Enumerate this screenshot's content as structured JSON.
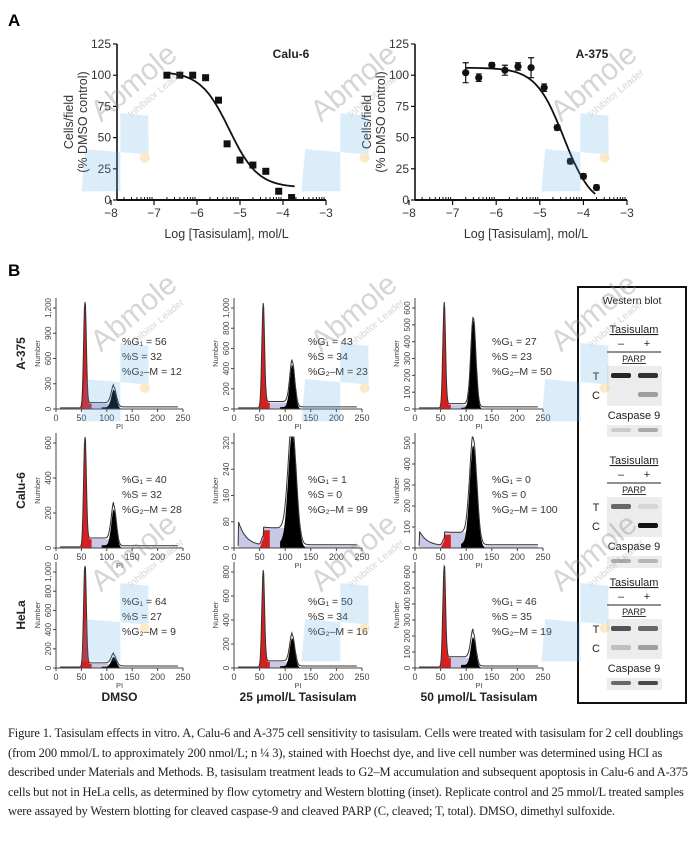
{
  "panel_a": {
    "label": "A",
    "chart_data": [
      {
        "type": "scatter",
        "title": "Calu-6",
        "xlabel": "Log [Tasisulam], mol/L",
        "ylabel_line1": "Cells/field",
        "ylabel_line2": "(% DMSO control)",
        "xlim": [
          -8,
          -3
        ],
        "ylim": [
          0,
          125
        ],
        "x_ticks": [
          "−8",
          "−7",
          "−6",
          "−5",
          "−4",
          "−3"
        ],
        "y_ticks": [
          "0",
          "25",
          "50",
          "75",
          "100",
          "125"
        ],
        "marker": "square",
        "fit_curve": "sigmoidal dose-response",
        "x": [
          -6.7,
          -6.4,
          -6.1,
          -5.8,
          -5.5,
          -5.3,
          -5.0,
          -4.7,
          -4.4,
          -4.1,
          -3.8
        ],
        "y": [
          100,
          100,
          100,
          98,
          80,
          45,
          32,
          28,
          23,
          7,
          2
        ]
      },
      {
        "type": "scatter",
        "title": "A-375",
        "xlabel": "Log [Tasisulam], mol/L",
        "ylabel_line1": "Cells/field",
        "ylabel_line2": "(% DMSO control)",
        "xlim": [
          -8,
          -3
        ],
        "ylim": [
          0,
          125
        ],
        "x_ticks": [
          "−8",
          "−7",
          "−6",
          "−5",
          "−4",
          "−3"
        ],
        "y_ticks": [
          "0",
          "25",
          "50",
          "75",
          "100",
          "125"
        ],
        "marker": "circle",
        "error_bars": true,
        "fit_curve": "sigmoidal dose-response",
        "x": [
          -6.7,
          -6.4,
          -6.1,
          -5.8,
          -5.5,
          -5.2,
          -4.9,
          -4.6,
          -4.3,
          -4.0,
          -3.7
        ],
        "y": [
          102,
          98,
          108,
          104,
          107,
          106,
          90,
          58,
          31,
          19,
          10
        ],
        "err": [
          8,
          3,
          2,
          4,
          3,
          8,
          3,
          2,
          2,
          2,
          2
        ]
      }
    ]
  },
  "panel_b": {
    "label": "B",
    "number_label": "Number",
    "pi_label": "PI",
    "x_ticks": [
      "0",
      "50",
      "100",
      "150",
      "200",
      "250"
    ],
    "columns": [
      "DMSO",
      "25 μmol/L Tasisulam",
      "50 μmol/L Tasisulam"
    ],
    "rows": [
      "A-375",
      "Calu-6",
      "HeLa"
    ],
    "g1_label": "%G₁ = ",
    "s_label": "%S = ",
    "g2m_label": "%G₂–M = ",
    "colors": {
      "g1": "#d62020",
      "s": "#c8c8e8",
      "g2m": "#2a3fa8"
    },
    "chart_data": [
      {
        "type": "area",
        "row": "A-375",
        "column": "DMSO",
        "G1": 56,
        "S": 32,
        "G2M": 12,
        "y_ticks": [
          "0",
          "300",
          "600",
          "900",
          "1,200"
        ]
      },
      {
        "type": "area",
        "row": "A-375",
        "column": "25 μmol/L Tasisulam",
        "G1": 43,
        "S": 34,
        "G2M": 23,
        "y_ticks": [
          "0",
          "200",
          "400",
          "600",
          "800",
          "1,000"
        ]
      },
      {
        "type": "area",
        "row": "A-375",
        "column": "50 μmol/L Tasisulam",
        "G1": 27,
        "S": 23,
        "G2M": 50,
        "y_ticks": [
          "0",
          "100",
          "200",
          "300",
          "400",
          "500",
          "600"
        ]
      },
      {
        "type": "area",
        "row": "Calu-6",
        "column": "DMSO",
        "G1": 40,
        "S": 32,
        "G2M": 28,
        "y_ticks": [
          "0",
          "200",
          "400",
          "600"
        ]
      },
      {
        "type": "area",
        "row": "Calu-6",
        "column": "25 μmol/L Tasisulam",
        "G1": 1,
        "S": 0,
        "G2M": 99,
        "y_ticks": [
          "0",
          "80",
          "160",
          "240",
          "320"
        ]
      },
      {
        "type": "area",
        "row": "Calu-6",
        "column": "50 μmol/L Tasisulam",
        "G1": 0,
        "S": 0,
        "G2M": 100,
        "y_ticks": [
          "0",
          "100",
          "200",
          "300",
          "400",
          "500"
        ]
      },
      {
        "type": "area",
        "row": "HeLa",
        "column": "DMSO",
        "G1": 64,
        "S": 27,
        "G2M": 9,
        "y_ticks": [
          "0",
          "200",
          "400",
          "600",
          "800",
          "1,000"
        ]
      },
      {
        "type": "area",
        "row": "HeLa",
        "column": "25 μmol/L Tasisulam",
        "G1": 50,
        "S": 34,
        "G2M": 16,
        "y_ticks": [
          "0",
          "200",
          "400",
          "600",
          "800"
        ]
      },
      {
        "type": "area",
        "row": "HeLa",
        "column": "50 μmol/L Tasisulam",
        "G1": 46,
        "S": 35,
        "G2M": 19,
        "y_ticks": [
          "0",
          "100",
          "200",
          "300",
          "400",
          "500",
          "600"
        ]
      }
    ],
    "western_blot": {
      "title": "Western blot",
      "blocks": [
        {
          "cell_line": "A-375",
          "treatment": "Tasisulam",
          "minus": "–",
          "plus": "+",
          "parp": "PARP",
          "t": "T",
          "c": "C",
          "caspase": "Caspase 9"
        },
        {
          "cell_line": "Calu-6",
          "treatment": "Tasisulam",
          "minus": "–",
          "plus": "+",
          "parp": "PARP",
          "t": "T",
          "c": "C",
          "caspase": "Caspase 9"
        },
        {
          "cell_line": "HeLa",
          "treatment": "Tasisulam",
          "minus": "–",
          "plus": "+",
          "parp": "PARP",
          "t": "T",
          "c": "C",
          "caspase": "Caspase 9"
        }
      ]
    }
  },
  "watermark": {
    "brand": "Abmole",
    "tagline": "Inhibitor Leader"
  },
  "caption": "Figure 1. Tasisulam effects in vitro. A, Calu-6 and A-375 cell sensitivity to tasisulam. Cells were treated with tasisulam for 2 cell doublings (from 200 mmol/L to approximately 200 nmol/L; n ¼ 3), stained with Hoechst dye, and live cell number was determined using HCI as described under Materials and Methods. B, tasisulam treatment leads to G2–M accumulation and subsequent apoptosis in Calu-6 and A-375 cells but not in HeLa cells, as determined by flow cytometry and Western blotting (inset). Replicate control and 25 mmol/L treated samples were assayed by Western blotting for cleaved caspase-9 and cleaved PARP (C, cleaved; T, total). DMSO, dimethyl sulfoxide."
}
